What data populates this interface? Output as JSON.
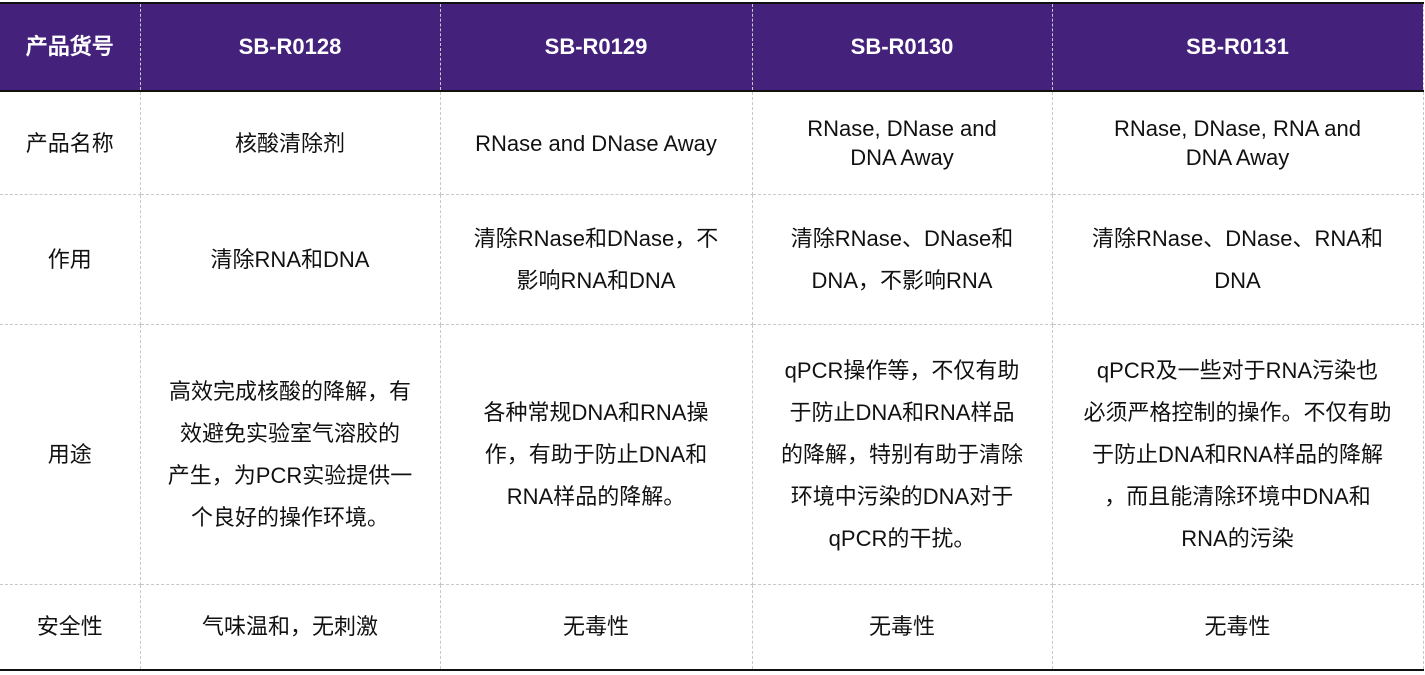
{
  "header": [
    "产品货号",
    "SB-R0128",
    "SB-R0129",
    "SB-R0130",
    "SB-R0131"
  ],
  "colors": {
    "header_bg": "#44217a",
    "header_text": "#ffffff"
  },
  "rows": [
    {
      "label": "产品名称",
      "cells": [
        "核酸清除剂",
        "RNase and DNase Away",
        "RNase, DNase and\nDNA Away",
        "RNase, DNase, RNA and\nDNA Away"
      ]
    },
    {
      "label": "作用",
      "cells": [
        "清除RNA和DNA",
        "清除RNase和DNase，不\n影响RNA和DNA",
        "清除RNase、DNase和\nDNA，不影响RNA",
        "清除RNase、DNase、RNA和\nDNA"
      ]
    },
    {
      "label": "用途",
      "cells": [
        "高效完成核酸的降解，有\n效避免实验室气溶胶的\n产生，为PCR实验提供一\n个良好的操作环境。",
        "各种常规DNA和RNA操\n作，有助于防止DNA和\nRNA样品的降解。",
        "qPCR操作等，不仅有助\n于防止DNA和RNA样品\n的降解，特别有助于清除\n环境中污染的DNA对于\nqPCR的干扰。",
        "qPCR及一些对于RNA污染也\n必须严格控制的操作。不仅有助\n于防止DNA和RNA样品的降解\n，而且能清除环境中DNA和\nRNA的污染"
      ]
    },
    {
      "label": "安全性",
      "cells": [
        "气味温和，无刺激",
        "无毒性",
        "无毒性",
        "无毒性"
      ]
    }
  ]
}
